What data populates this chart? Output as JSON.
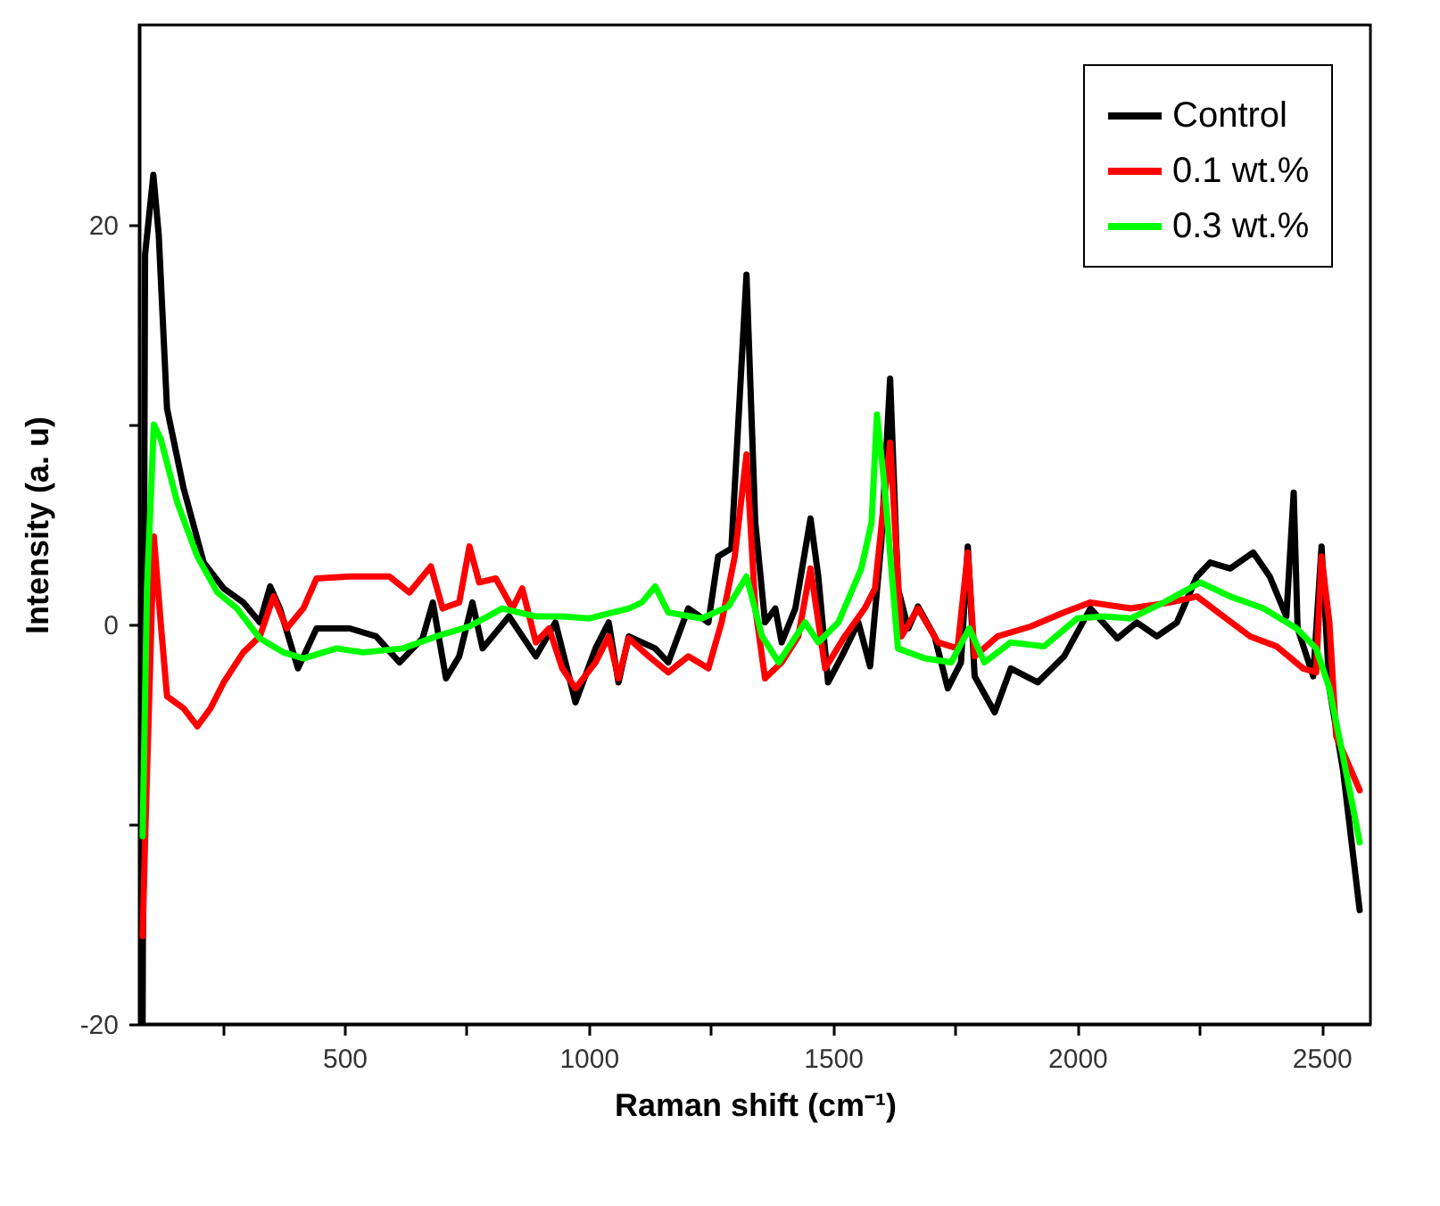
{
  "chart_data": {
    "type": "line",
    "xlabel": "Raman shift (cm⁻¹)",
    "ylabel": "Intensity (a. u)",
    "xlim": [
      80,
      2600
    ],
    "ylim": [
      -20,
      30
    ],
    "xticks": [
      {
        "value": 250,
        "label": null
      },
      500,
      {
        "value": 750,
        "label": null
      },
      1000,
      {
        "value": 1250,
        "label": null
      },
      1500,
      {
        "value": 1750,
        "label": null
      },
      2000,
      {
        "value": 2250,
        "label": null
      },
      2500
    ],
    "yticks": [
      -20,
      {
        "value": -10,
        "label": null
      },
      0,
      {
        "value": 10,
        "label": null
      },
      20
    ],
    "legend": "top right",
    "grid": false,
    "line_style": "solid",
    "marker": "none",
    "series": [
      {
        "name": "Control",
        "color": "#000000",
        "x": [
          87,
          92,
          109,
          120,
          137,
          171,
          212,
          253,
          293,
          327,
          348,
          368,
          405,
          443,
          511,
          565,
          613,
          660,
          681,
          708,
          735,
          762,
          783,
          837,
          892,
          932,
          973,
          1014,
          1041,
          1061,
          1082,
          1136,
          1163,
          1204,
          1245,
          1265,
          1292,
          1323,
          1341,
          1361,
          1382,
          1395,
          1423,
          1454,
          1470,
          1490,
          1518,
          1552,
          1576,
          1599,
          1617,
          1633,
          1654,
          1674,
          1708,
          1735,
          1762,
          1776,
          1790,
          1831,
          1864,
          1919,
          1973,
          2027,
          2082,
          2122,
          2163,
          2204,
          2245,
          2272,
          2313,
          2360,
          2394,
          2428,
          2443,
          2451,
          2483,
          2500,
          2516,
          2544,
          2578
        ],
        "values": [
          -20,
          18.5,
          22.5,
          19.5,
          10.8,
          6.8,
          3.1,
          1.8,
          1.1,
          0.1,
          1.9,
          0.8,
          -2.2,
          -0.2,
          -0.2,
          -0.6,
          -1.9,
          -0.7,
          1.1,
          -2.7,
          -1.6,
          1.1,
          -1.2,
          0.4,
          -1.6,
          0.1,
          -3.9,
          -1.2,
          0.1,
          -2.9,
          -0.6,
          -1.2,
          -1.9,
          0.8,
          0.1,
          3.4,
          3.8,
          17.5,
          5.1,
          0.1,
          0.8,
          -0.9,
          0.8,
          5.3,
          2.4,
          -2.9,
          -1.6,
          0.1,
          -2.1,
          4.1,
          12.3,
          1.8,
          -0.2,
          0.9,
          -0.6,
          -3.2,
          -1.9,
          3.9,
          -2.6,
          -4.4,
          -2.2,
          -2.9,
          -1.6,
          0.8,
          -0.7,
          0.1,
          -0.6,
          0.1,
          2.4,
          3.1,
          2.8,
          3.6,
          2.4,
          0.4,
          6.6,
          -0.2,
          -2.6,
          3.9,
          -3.2,
          -7.3,
          -14.3
        ]
      },
      {
        "name": "0.1 wt.%",
        "color": "#ff0000",
        "x": [
          87,
          92,
          110,
          124,
          137,
          171,
          199,
          226,
          253,
          293,
          327,
          355,
          382,
          416,
          443,
          511,
          592,
          633,
          677,
          701,
          735,
          756,
          776,
          810,
          844,
          864,
          892,
          919,
          946,
          973,
          1014,
          1041,
          1061,
          1082,
          1123,
          1163,
          1204,
          1245,
          1272,
          1299,
          1323,
          1341,
          1361,
          1395,
          1429,
          1454,
          1484,
          1524,
          1565,
          1586,
          1617,
          1640,
          1674,
          1715,
          1755,
          1776,
          1790,
          1837,
          1905,
          1973,
          2027,
          2109,
          2190,
          2245,
          2299,
          2354,
          2408,
          2462,
          2489,
          2500,
          2516,
          2530,
          2578
        ],
        "values": [
          -15.6,
          -10.9,
          4.4,
          0.1,
          -3.6,
          -4.2,
          -5.1,
          -4.2,
          -2.9,
          -1.4,
          -0.6,
          1.4,
          -0.2,
          0.8,
          2.3,
          2.4,
          2.4,
          1.6,
          2.9,
          0.8,
          1.1,
          3.9,
          2.1,
          2.3,
          0.8,
          1.8,
          -0.9,
          -0.2,
          -2.2,
          -3.2,
          -1.9,
          -0.6,
          -2.7,
          -0.7,
          -1.6,
          -2.4,
          -1.6,
          -2.2,
          0.1,
          3.4,
          8.5,
          0.8,
          -2.7,
          -1.9,
          -0.6,
          2.8,
          -2.2,
          -0.6,
          0.8,
          1.8,
          9.1,
          -0.6,
          0.8,
          -0.9,
          -1.2,
          3.6,
          -1.6,
          -0.6,
          -0.1,
          0.6,
          1.1,
          0.8,
          1.1,
          1.4,
          0.4,
          -0.6,
          -1.1,
          -2.2,
          -2.4,
          3.4,
          0.1,
          -5.6,
          -8.3
        ]
      },
      {
        "name": "0.3 wt.%",
        "color": "#00ff00",
        "x": [
          87,
          96,
          110,
          124,
          158,
          199,
          240,
          280,
          327,
          375,
          416,
          484,
          538,
          620,
          688,
          756,
          823,
          892,
          946,
          1000,
          1082,
          1109,
          1136,
          1163,
          1231,
          1286,
          1323,
          1355,
          1389,
          1416,
          1443,
          1470,
          1511,
          1558,
          1579,
          1590,
          1606,
          1633,
          1688,
          1742,
          1779,
          1810,
          1864,
          1932,
          2000,
          2054,
          2109,
          2177,
          2252,
          2313,
          2381,
          2449,
          2489,
          2516,
          2544,
          2578
        ],
        "values": [
          -10.6,
          1.8,
          10,
          9.3,
          6.1,
          3.4,
          1.6,
          0.8,
          -0.7,
          -1.4,
          -1.7,
          -1.2,
          -1.4,
          -1.2,
          -0.6,
          -0.1,
          0.8,
          0.4,
          0.4,
          0.3,
          0.8,
          1.1,
          1.9,
          0.6,
          0.3,
          0.9,
          2.4,
          -0.6,
          -1.9,
          -0.9,
          0.1,
          -0.9,
          0.1,
          2.8,
          5.1,
          10.5,
          6.8,
          -1.2,
          -1.7,
          -1.9,
          -0.2,
          -1.9,
          -0.9,
          -1.1,
          0.3,
          0.4,
          0.3,
          1.1,
          2.1,
          1.4,
          0.8,
          -0.2,
          -1.2,
          -3.2,
          -6.6,
          -10.9
        ]
      }
    ]
  }
}
